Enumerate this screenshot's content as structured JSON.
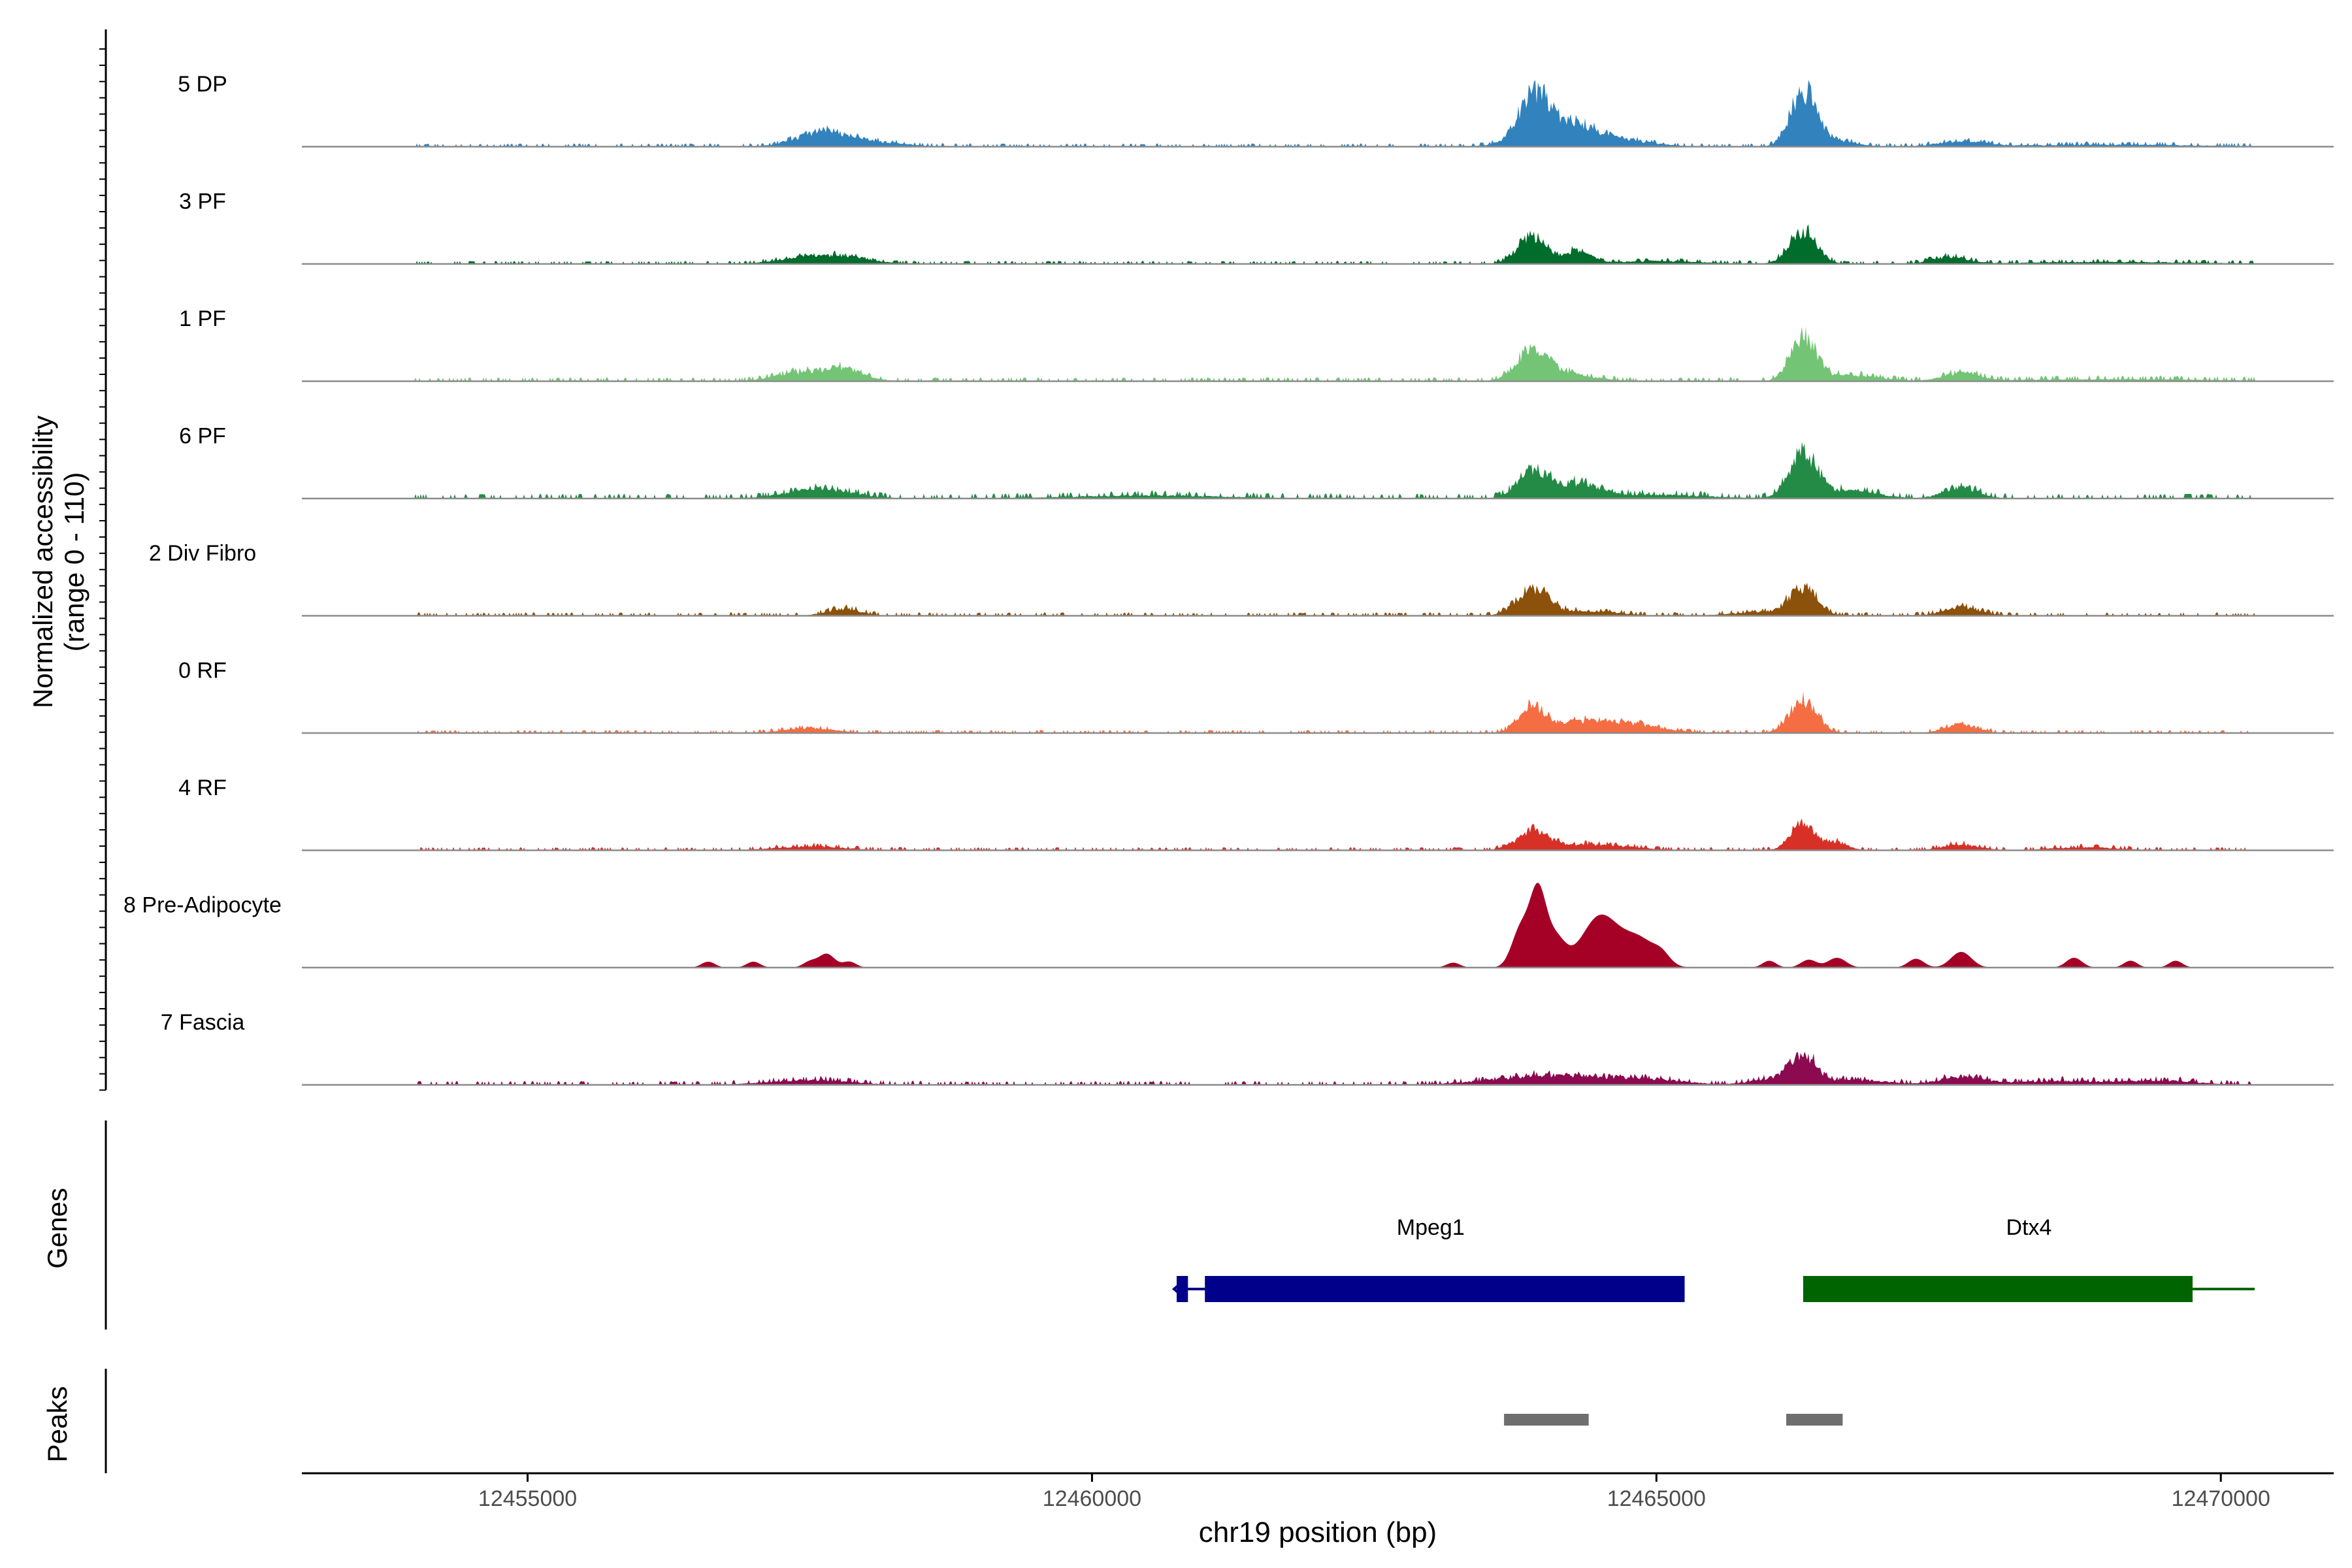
{
  "chart_data": {
    "type": "area",
    "title": "",
    "xlabel": "chr19 position (bp)",
    "ylabel_line1": "Normalized accessibility",
    "ylabel_line2": "(range 0 - 110)",
    "ylim": [
      0,
      110
    ],
    "xlim": [
      12453000,
      12471000
    ],
    "x_ticks": [
      12455000,
      12460000,
      12465000,
      12470000
    ],
    "x_tick_labels": [
      "12455000",
      "12460000",
      "12465000",
      "12470000"
    ],
    "tracks": [
      {
        "name": "5 DP",
        "color": "#3182bd",
        "peaks": [
          [
            12457600,
            14,
            220
          ],
          [
            12458000,
            5,
            300
          ],
          [
            12463900,
            38,
            120
          ],
          [
            12464100,
            22,
            260
          ],
          [
            12464500,
            9,
            350
          ],
          [
            12466300,
            52,
            110
          ],
          [
            12466500,
            8,
            200
          ],
          [
            12467700,
            5,
            200
          ],
          [
            12469000,
            2,
            800
          ]
        ],
        "noise": 1.5
      },
      {
        "name": "3 PF",
        "color": "#006d2c",
        "peaks": [
          [
            12457500,
            8,
            250
          ],
          [
            12457900,
            5,
            200
          ],
          [
            12463900,
            28,
            130
          ],
          [
            12464300,
            13,
            110
          ],
          [
            12465000,
            3,
            400
          ],
          [
            12466300,
            33,
            120
          ],
          [
            12467600,
            7,
            150
          ],
          [
            12469000,
            2,
            800
          ]
        ],
        "noise": 1.4
      },
      {
        "name": "1 PF",
        "color": "#74c476",
        "peaks": [
          [
            12457400,
            8,
            220
          ],
          [
            12457800,
            12,
            180
          ],
          [
            12463900,
            30,
            140
          ],
          [
            12464200,
            7,
            250
          ],
          [
            12466300,
            46,
            110
          ],
          [
            12466700,
            6,
            250
          ],
          [
            12467700,
            8,
            150
          ],
          [
            12469000,
            2,
            900
          ]
        ],
        "noise": 1.8
      },
      {
        "name": "6 PF",
        "color": "#238b45",
        "peaks": [
          [
            12457600,
            10,
            280
          ],
          [
            12463900,
            29,
            130
          ],
          [
            12464300,
            14,
            180
          ],
          [
            12464900,
            4,
            500
          ],
          [
            12466300,
            42,
            120
          ],
          [
            12466700,
            8,
            250
          ],
          [
            12467700,
            11,
            150
          ],
          [
            12460500,
            3,
            700
          ]
        ],
        "noise": 2.2
      },
      {
        "name": "2 Div Fibro",
        "color": "#8c510a",
        "peaks": [
          [
            12457800,
            7,
            150
          ],
          [
            12463900,
            27,
            140
          ],
          [
            12464400,
            5,
            250
          ],
          [
            12466300,
            26,
            120
          ],
          [
            12466000,
            4,
            300
          ],
          [
            12467700,
            9,
            160
          ]
        ],
        "noise": 1.6
      },
      {
        "name": "0 RF",
        "color": "#f46d43",
        "peaks": [
          [
            12457500,
            5,
            220
          ],
          [
            12463900,
            27,
            120
          ],
          [
            12464300,
            8,
            180
          ],
          [
            12464700,
            10,
            300
          ],
          [
            12466300,
            34,
            120
          ],
          [
            12467700,
            9,
            140
          ]
        ],
        "noise": 1.4
      },
      {
        "name": "4 RF",
        "color": "#d73027",
        "peaks": [
          [
            12457500,
            4,
            300
          ],
          [
            12463900,
            17,
            140
          ],
          [
            12464400,
            6,
            350
          ],
          [
            12466300,
            28,
            110
          ],
          [
            12466600,
            8,
            100
          ],
          [
            12467700,
            6,
            160
          ],
          [
            12468800,
            3,
            300
          ]
        ],
        "noise": 1.5
      },
      {
        "name": "8 Pre-Adipocyte",
        "color": "#a50026",
        "peaks": [
          [
            12456600,
            6,
            60
          ],
          [
            12457000,
            6,
            60
          ],
          [
            12457500,
            6,
            60
          ],
          [
            12457650,
            14,
            70
          ],
          [
            12457850,
            6,
            60
          ],
          [
            12463200,
            5,
            60
          ],
          [
            12463800,
            40,
            80
          ],
          [
            12463950,
            72,
            70
          ],
          [
            12464100,
            30,
            90
          ],
          [
            12464500,
            52,
            160
          ],
          [
            12464850,
            28,
            150
          ],
          [
            12465050,
            8,
            70
          ],
          [
            12466000,
            7,
            60
          ],
          [
            12466350,
            8,
            70
          ],
          [
            12466600,
            10,
            80
          ],
          [
            12467300,
            9,
            70
          ],
          [
            12467700,
            16,
            90
          ],
          [
            12468700,
            10,
            70
          ],
          [
            12469200,
            7,
            60
          ],
          [
            12469600,
            7,
            60
          ]
        ],
        "noise": 0
      },
      {
        "name": "7 Fascia",
        "color": "#8b0a50",
        "peaks": [
          [
            12457500,
            5,
            350
          ],
          [
            12464100,
            10,
            500
          ],
          [
            12465000,
            4,
            300
          ],
          [
            12466300,
            28,
            110
          ],
          [
            12466100,
            7,
            220
          ],
          [
            12466800,
            5,
            250
          ],
          [
            12467700,
            8,
            200
          ],
          [
            12468600,
            4,
            400
          ],
          [
            12469500,
            4,
            300
          ]
        ],
        "noise": 1.8
      }
    ],
    "genes": [
      {
        "name": "Mpeg1",
        "color": "#00008b",
        "start": 12460750,
        "end": 12465250,
        "exons": [
          [
            12460750,
            12460850
          ],
          [
            12461000,
            12465250
          ]
        ],
        "strand": "-"
      },
      {
        "name": "Dtx4",
        "color": "#006400",
        "start": 12466300,
        "end": 12470300,
        "exons": [
          [
            12466300,
            12469750
          ]
        ],
        "strand": "+"
      }
    ],
    "peaks_track": {
      "color": "#6e6e6e",
      "regions": [
        [
          12463650,
          12464400
        ],
        [
          12466150,
          12466650
        ]
      ]
    },
    "panel_labels": {
      "genes": "Genes",
      "peaks": "Peaks"
    }
  }
}
